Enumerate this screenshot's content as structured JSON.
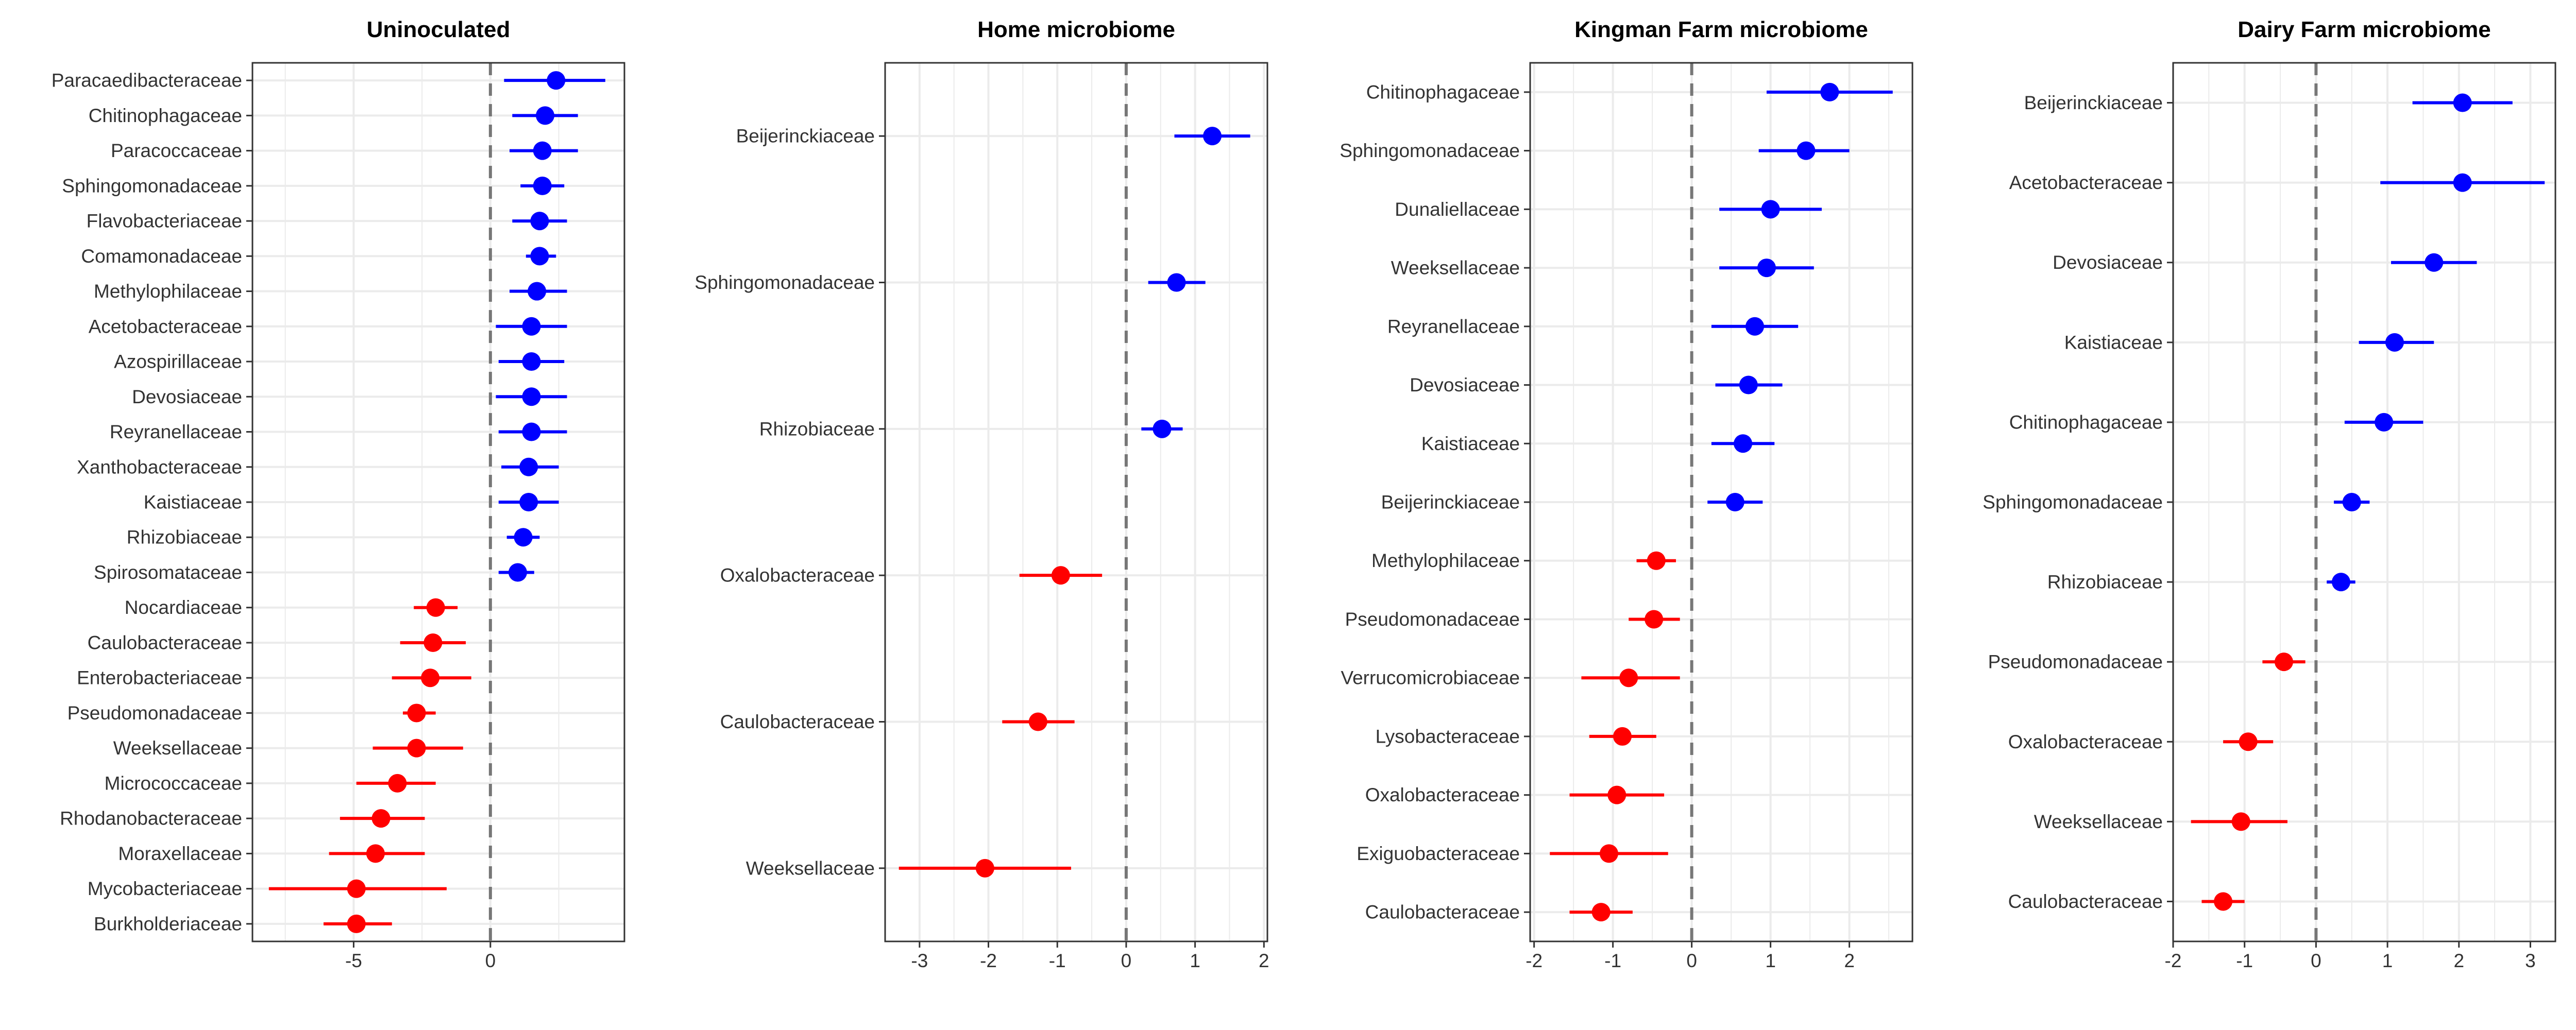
{
  "colors": {
    "positive": "#0000ff",
    "negative": "#ff0000",
    "zero_line": "#777777",
    "grid": "#ebebeb",
    "frame": "#333333"
  },
  "chart_data": [
    {
      "type": "scatter",
      "title": "Uninoculated",
      "xlabel": "",
      "ylabel": "",
      "xlim": [
        -8.7,
        4.9
      ],
      "xticks": [
        -5,
        0
      ],
      "grid": true,
      "categories": [
        "Paracaedibacteraceae",
        "Chitinophagaceae",
        "Paracoccaceae",
        "Sphingomonadaceae",
        "Flavobacteriaceae",
        "Comamonadaceae",
        "Methylophilaceae",
        "Acetobacteraceae",
        "Azospirillaceae",
        "Devosiaceae",
        "Reyranellaceae",
        "Xanthobacteraceae",
        "Kaistiaceae",
        "Rhizobiaceae",
        "Spirosomataceae",
        "Nocardiaceae",
        "Caulobacteraceae",
        "Enterobacteriaceae",
        "Pseudomonadaceae",
        "Weeksellaceae",
        "Micrococcaceae",
        "Rhodanobacteraceae",
        "Moraxellaceae",
        "Mycobacteriaceae",
        "Burkholderiaceae"
      ],
      "estimates": [
        2.4,
        2.0,
        1.9,
        1.9,
        1.8,
        1.8,
        1.7,
        1.5,
        1.5,
        1.5,
        1.5,
        1.4,
        1.4,
        1.2,
        1.0,
        -2.0,
        -2.1,
        -2.2,
        -2.7,
        -2.7,
        -3.4,
        -4.0,
        -4.2,
        -4.9,
        -4.9
      ],
      "lower": [
        0.5,
        0.8,
        0.7,
        1.1,
        0.8,
        1.3,
        0.7,
        0.2,
        0.3,
        0.2,
        0.3,
        0.4,
        0.3,
        0.6,
        0.3,
        -2.8,
        -3.3,
        -3.6,
        -3.2,
        -4.3,
        -4.9,
        -5.5,
        -5.9,
        -8.1,
        -6.1
      ],
      "upper": [
        4.2,
        3.2,
        3.2,
        2.7,
        2.8,
        2.4,
        2.8,
        2.8,
        2.7,
        2.8,
        2.8,
        2.5,
        2.5,
        1.8,
        1.6,
        -1.2,
        -0.9,
        -0.7,
        -2.0,
        -1.0,
        -2.0,
        -2.4,
        -2.4,
        -1.6,
        -3.6
      ]
    },
    {
      "type": "scatter",
      "title": "Home microbiome",
      "xlabel": "",
      "ylabel": "",
      "xlim": [
        -3.5,
        2.05
      ],
      "xticks": [
        -3,
        -2,
        -1,
        0,
        1,
        2
      ],
      "grid": true,
      "categories": [
        "Beijerinckiaceae",
        "Sphingomonadaceae",
        "Rhizobiaceae",
        "Oxalobacteraceae",
        "Caulobacteraceae",
        "Weeksellaceae"
      ],
      "estimates": [
        1.25,
        0.73,
        0.52,
        -0.95,
        -1.28,
        -2.05
      ],
      "lower": [
        0.7,
        0.32,
        0.22,
        -1.55,
        -1.8,
        -3.3
      ],
      "upper": [
        1.8,
        1.15,
        0.82,
        -0.35,
        -0.75,
        -0.8
      ]
    },
    {
      "type": "scatter",
      "title": "Kingman Farm microbiome",
      "xlabel": "",
      "ylabel": "",
      "xlim": [
        -2.05,
        2.8
      ],
      "xticks": [
        -2,
        -1,
        0,
        1,
        2
      ],
      "grid": true,
      "categories": [
        "Chitinophagaceae",
        "Sphingomonadaceae",
        "Dunaliellaceae",
        "Weeksellaceae",
        "Reyranellaceae",
        "Devosiaceae",
        "Kaistiaceae",
        "Beijerinckiaceae",
        "Methylophilaceae",
        "Pseudomonadaceae",
        "Verrucomicrobiaceae",
        "Lysobacteraceae",
        "Oxalobacteraceae",
        "Exiguobacteraceae",
        "Caulobacteraceae"
      ],
      "estimates": [
        1.75,
        1.45,
        1.0,
        0.95,
        0.8,
        0.72,
        0.65,
        0.55,
        -0.45,
        -0.48,
        -0.8,
        -0.88,
        -0.95,
        -1.05,
        -1.15
      ],
      "lower": [
        0.95,
        0.85,
        0.35,
        0.35,
        0.25,
        0.3,
        0.25,
        0.2,
        -0.7,
        -0.8,
        -1.4,
        -1.3,
        -1.55,
        -1.8,
        -1.55
      ],
      "upper": [
        2.55,
        2.0,
        1.65,
        1.55,
        1.35,
        1.15,
        1.05,
        0.9,
        -0.2,
        -0.15,
        -0.15,
        -0.45,
        -0.35,
        -0.3,
        -0.75
      ]
    },
    {
      "type": "scatter",
      "title": "Dairy Farm microbiome",
      "xlabel": "",
      "ylabel": "",
      "xlim": [
        -2.0,
        3.35
      ],
      "xticks": [
        -2,
        -1,
        0,
        1,
        2,
        3
      ],
      "grid": true,
      "categories": [
        "Beijerinckiaceae",
        "Acetobacteraceae",
        "Devosiaceae",
        "Kaistiaceae",
        "Chitinophagaceae",
        "Sphingomonadaceae",
        "Rhizobiaceae",
        "Pseudomonadaceae",
        "Oxalobacteraceae",
        "Weeksellaceae",
        "Caulobacteraceae"
      ],
      "estimates": [
        2.05,
        2.05,
        1.65,
        1.1,
        0.95,
        0.5,
        0.35,
        -0.45,
        -0.95,
        -1.05,
        -1.3
      ],
      "lower": [
        1.35,
        0.9,
        1.05,
        0.6,
        0.4,
        0.25,
        0.15,
        -0.75,
        -1.3,
        -1.75,
        -1.6
      ],
      "upper": [
        2.75,
        3.2,
        2.25,
        1.65,
        1.5,
        0.75,
        0.55,
        -0.15,
        -0.6,
        -0.4,
        -1.0
      ]
    }
  ]
}
